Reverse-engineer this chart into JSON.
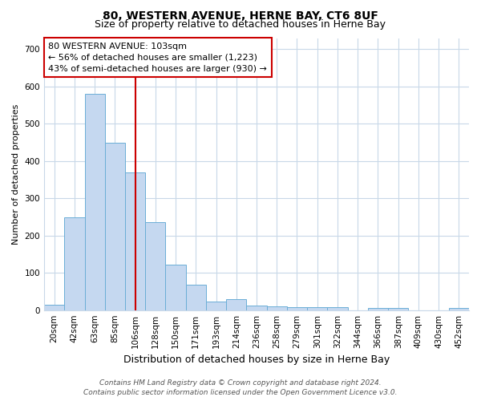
{
  "title": "80, WESTERN AVENUE, HERNE BAY, CT6 8UF",
  "subtitle": "Size of property relative to detached houses in Herne Bay",
  "xlabel": "Distribution of detached houses by size in Herne Bay",
  "ylabel": "Number of detached properties",
  "categories": [
    "20sqm",
    "42sqm",
    "63sqm",
    "85sqm",
    "106sqm",
    "128sqm",
    "150sqm",
    "171sqm",
    "193sqm",
    "214sqm",
    "236sqm",
    "258sqm",
    "279sqm",
    "301sqm",
    "322sqm",
    "344sqm",
    "366sqm",
    "387sqm",
    "409sqm",
    "430sqm",
    "452sqm"
  ],
  "values": [
    15,
    248,
    580,
    450,
    370,
    235,
    122,
    68,
    22,
    30,
    13,
    10,
    8,
    8,
    8,
    0,
    5,
    5,
    0,
    0,
    5
  ],
  "bar_color": "#c5d8f0",
  "bar_edge_color": "#6baed6",
  "vline_x": 4.0,
  "vline_color": "#cc0000",
  "annotation_text": "80 WESTERN AVENUE: 103sqm\n← 56% of detached houses are smaller (1,223)\n43% of semi-detached houses are larger (930) →",
  "annotation_box_color": "#ffffff",
  "annotation_box_edge_color": "#cc0000",
  "ylim": [
    0,
    730
  ],
  "yticks": [
    0,
    100,
    200,
    300,
    400,
    500,
    600,
    700
  ],
  "grid_color": "#c8d8e8",
  "background_color": "#ffffff",
  "footer_line1": "Contains HM Land Registry data © Crown copyright and database right 2024.",
  "footer_line2": "Contains public sector information licensed under the Open Government Licence v3.0.",
  "title_fontsize": 10,
  "subtitle_fontsize": 9,
  "xlabel_fontsize": 9,
  "ylabel_fontsize": 8,
  "tick_fontsize": 7.5,
  "annotation_fontsize": 8,
  "footer_fontsize": 6.5
}
